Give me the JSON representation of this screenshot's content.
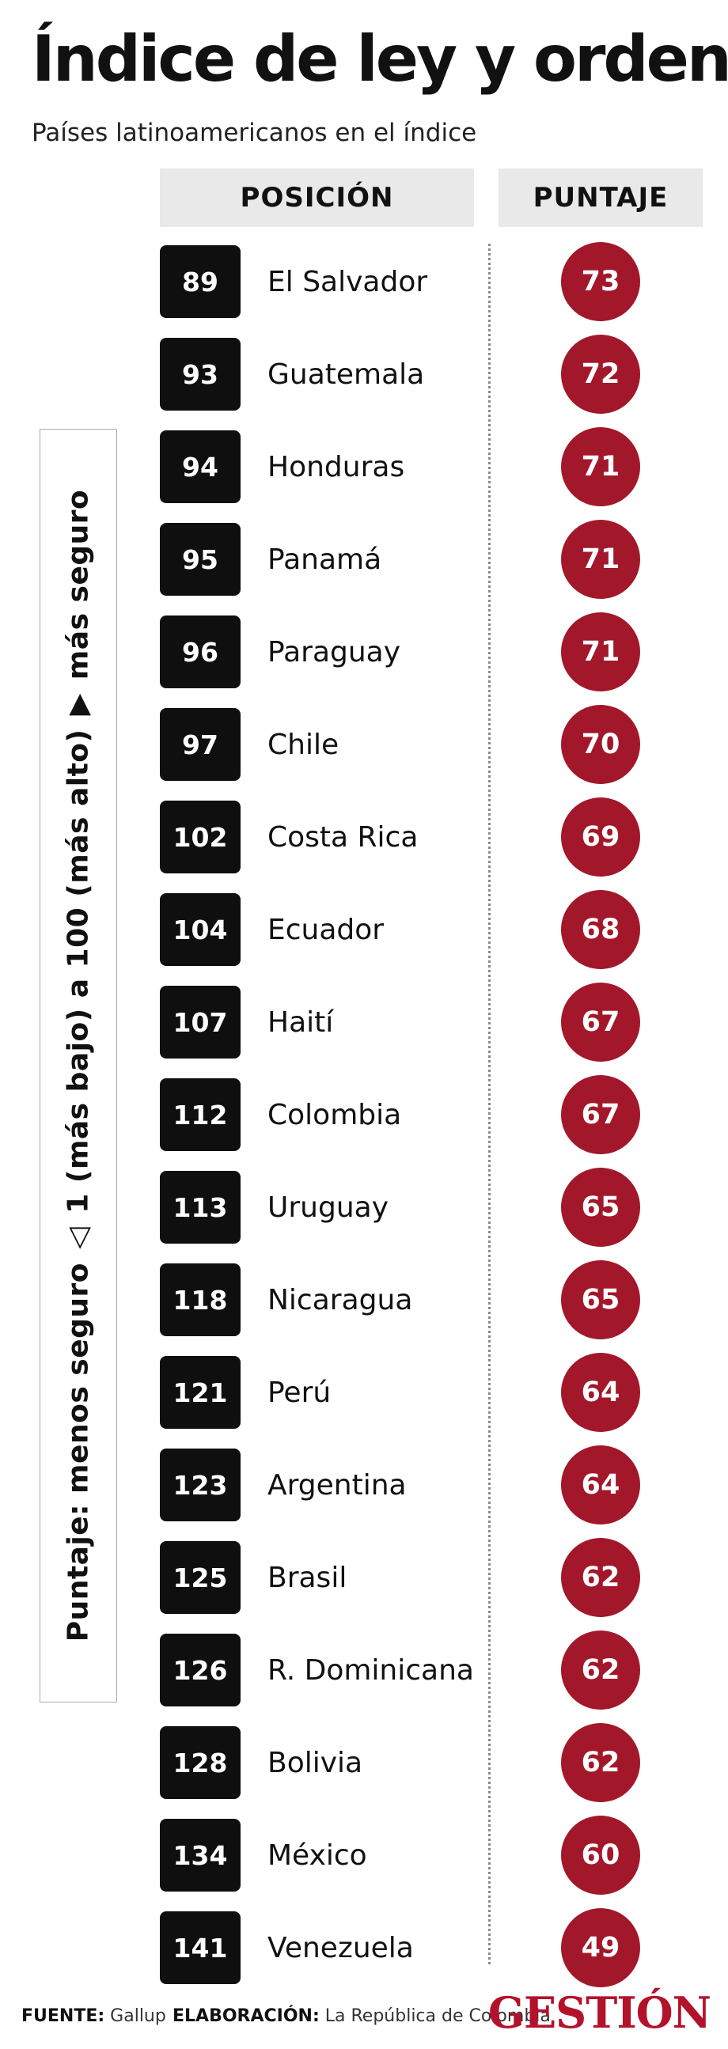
{
  "title": "Índice de ley y orden",
  "subtitle": "Países latinoamericanos en el índice",
  "headers": {
    "position": "POSICIÓN",
    "score": "PUNTAJE"
  },
  "legend": {
    "part1": "Puntaje: menos seguro",
    "part2": "1 (más bajo) a 100 (más alto)",
    "part3": "más seguro"
  },
  "colors": {
    "score_circle": "#a3172a",
    "rank_box": "#0f0f0f",
    "header_bg": "#e9e9e9",
    "brand": "#b3122b"
  },
  "chart_data": {
    "type": "table",
    "columns": [
      "POSICIÓN",
      "PUNTAJE"
    ],
    "rows": [
      {
        "rank": "89",
        "country": "El Salvador",
        "score": "73"
      },
      {
        "rank": "93",
        "country": "Guatemala",
        "score": "72"
      },
      {
        "rank": "94",
        "country": "Honduras",
        "score": "71"
      },
      {
        "rank": "95",
        "country": "Panamá",
        "score": "71"
      },
      {
        "rank": "96",
        "country": "Paraguay",
        "score": "71"
      },
      {
        "rank": "97",
        "country": "Chile",
        "score": "70"
      },
      {
        "rank": "102",
        "country": "Costa Rica",
        "score": "69"
      },
      {
        "rank": "104",
        "country": "Ecuador",
        "score": "68"
      },
      {
        "rank": "107",
        "country": "Haití",
        "score": "67"
      },
      {
        "rank": "112",
        "country": "Colombia",
        "score": "67"
      },
      {
        "rank": "113",
        "country": "Uruguay",
        "score": "65"
      },
      {
        "rank": "118",
        "country": "Nicaragua",
        "score": "65"
      },
      {
        "rank": "121",
        "country": "Perú",
        "score": "64"
      },
      {
        "rank": "123",
        "country": "Argentina",
        "score": "64"
      },
      {
        "rank": "125",
        "country": "Brasil",
        "score": "62"
      },
      {
        "rank": "126",
        "country": "R. Dominicana",
        "score": "62"
      },
      {
        "rank": "128",
        "country": "Bolivia",
        "score": "62"
      },
      {
        "rank": "134",
        "country": "México",
        "score": "60"
      },
      {
        "rank": "141",
        "country": "Venezuela",
        "score": "49"
      }
    ]
  },
  "footer": {
    "source_label": "FUENTE:",
    "source": "Gallup",
    "credit_label": "ELABORACIÓN:",
    "credit": "La República de Colombia"
  },
  "brand": "GESTIÓN"
}
